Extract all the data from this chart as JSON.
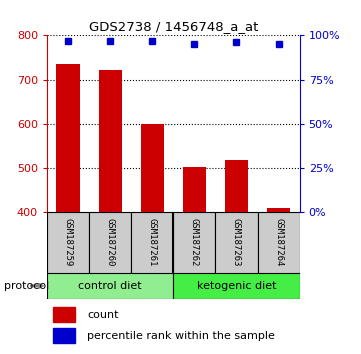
{
  "title": "GDS2738 / 1456748_a_at",
  "samples": [
    "GSM187259",
    "GSM187260",
    "GSM187261",
    "GSM187262",
    "GSM187263",
    "GSM187264"
  ],
  "counts": [
    735,
    722,
    600,
    503,
    518,
    410
  ],
  "percentile_ranks": [
    97,
    97,
    97,
    95,
    96,
    95
  ],
  "ylim_left": [
    400,
    800
  ],
  "ylim_right": [
    0,
    100
  ],
  "yticks_left": [
    400,
    500,
    600,
    700,
    800
  ],
  "yticks_right": [
    0,
    25,
    50,
    75,
    100
  ],
  "bar_color": "#cc0000",
  "dot_color": "#0000cc",
  "bar_width": 0.55,
  "group_boundary": 2.5,
  "groups": [
    {
      "label": "control diet",
      "indices": [
        0,
        1,
        2
      ],
      "color": "#90ee90"
    },
    {
      "label": "ketogenic diet",
      "indices": [
        3,
        4,
        5
      ],
      "color": "#44ee44"
    }
  ],
  "protocol_label": "protocol",
  "legend_count_label": "count",
  "legend_percentile_label": "percentile rank within the sample",
  "background_color": "#ffffff",
  "label_color_left": "#cc0000",
  "label_color_right": "#0000cc",
  "sample_box_color": "#cccccc",
  "figsize": [
    3.61,
    3.54
  ],
  "dpi": 100
}
